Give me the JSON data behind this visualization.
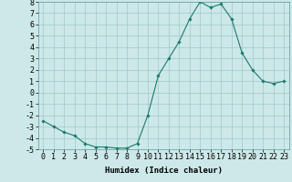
{
  "title": "",
  "xlabel": "Humidex (Indice chaleur)",
  "ylabel": "",
  "x": [
    0,
    1,
    2,
    3,
    4,
    5,
    6,
    7,
    8,
    9,
    10,
    11,
    12,
    13,
    14,
    15,
    16,
    17,
    18,
    19,
    20,
    21,
    22,
    23
  ],
  "y": [
    -2.5,
    -3.0,
    -3.5,
    -3.8,
    -4.5,
    -4.8,
    -4.8,
    -4.9,
    -4.9,
    -4.5,
    -2.0,
    1.5,
    3.0,
    4.5,
    6.5,
    8.0,
    7.5,
    7.8,
    6.5,
    3.5,
    2.0,
    1.0,
    0.8,
    1.0
  ],
  "ylim": [
    -5,
    8
  ],
  "yticks": [
    -5,
    -4,
    -3,
    -2,
    -1,
    0,
    1,
    2,
    3,
    4,
    5,
    6,
    7,
    8
  ],
  "line_color": "#1a7a6e",
  "marker": "D",
  "marker_size": 1.8,
  "bg_color": "#cde8e8",
  "plot_bg": "#cde8e8",
  "grid_color": "#a0c8c8",
  "font_color": "#000000",
  "label_fontsize": 6.5,
  "tick_fontsize": 6.0
}
